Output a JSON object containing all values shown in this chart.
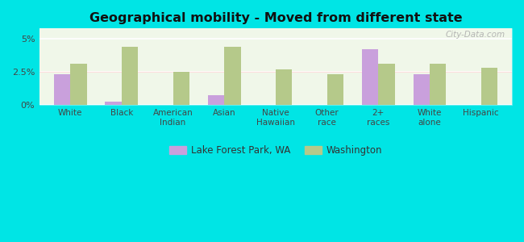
{
  "title": "Geographical mobility - Moved from different state",
  "categories": [
    "White",
    "Black",
    "American\nIndian",
    "Asian",
    "Native\nHawaiian",
    "Other\nrace",
    "2+\nraces",
    "White\nalone",
    "Hispanic"
  ],
  "lake_forest_park": [
    2.3,
    0.2,
    0.0,
    0.7,
    0.0,
    0.0,
    4.2,
    2.3,
    0.0
  ],
  "washington": [
    3.1,
    4.4,
    2.5,
    4.4,
    2.7,
    2.3,
    3.1,
    3.1,
    2.8
  ],
  "bar_color_lfp": "#c9a0dc",
  "bar_color_wa": "#b5c98a",
  "background_color": "#00e5e5",
  "plot_facecolor": "#eaf4e0",
  "yticks": [
    0,
    2.5,
    5.0
  ],
  "ytick_labels": [
    "0%",
    "2.5%",
    "5%"
  ],
  "ylim": [
    0,
    5.8
  ],
  "legend_label_lfp": "Lake Forest Park, WA",
  "legend_label_wa": "Washington",
  "watermark": "City-Data.com"
}
